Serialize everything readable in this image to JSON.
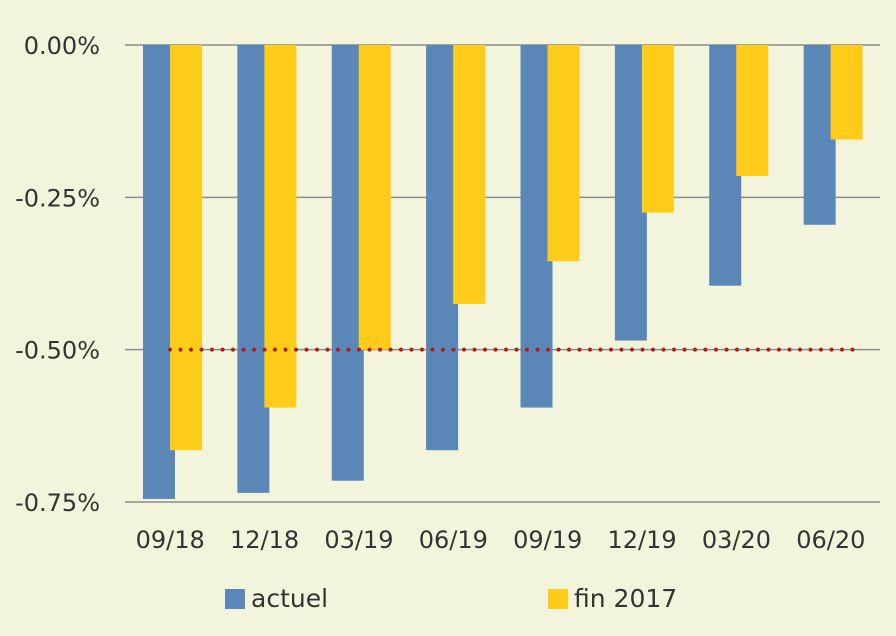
{
  "chart_data": {
    "type": "bar",
    "title": "",
    "xlabel": "",
    "ylabel": "",
    "categories": [
      "09/18",
      "12/18",
      "03/19",
      "06/19",
      "09/19",
      "12/19",
      "03/20",
      "06/20"
    ],
    "series": [
      {
        "name": "actuel",
        "color": "#5b86b8",
        "values": [
          -0.745,
          -0.735,
          -0.715,
          -0.665,
          -0.595,
          -0.485,
          -0.395,
          -0.295
        ]
      },
      {
        "name": "fin 2017",
        "color": "#ffcc1a",
        "values": [
          -0.665,
          -0.595,
          -0.5,
          -0.425,
          -0.355,
          -0.275,
          -0.215,
          -0.155
        ]
      }
    ],
    "reference_line": {
      "value": -0.5,
      "color": "#b01c1c",
      "style": "dotted",
      "from_category": "09/18",
      "to_category": "06/20"
    },
    "yticks": [
      {
        "value": 0,
        "label": "0.00%"
      },
      {
        "value": -0.25,
        "label": "-0.25%"
      },
      {
        "value": -0.5,
        "label": "-0.50%"
      },
      {
        "value": -0.75,
        "label": "-0.75%"
      }
    ],
    "ylim": [
      -0.75,
      0
    ],
    "grid": true,
    "legend_position": "bottom"
  }
}
